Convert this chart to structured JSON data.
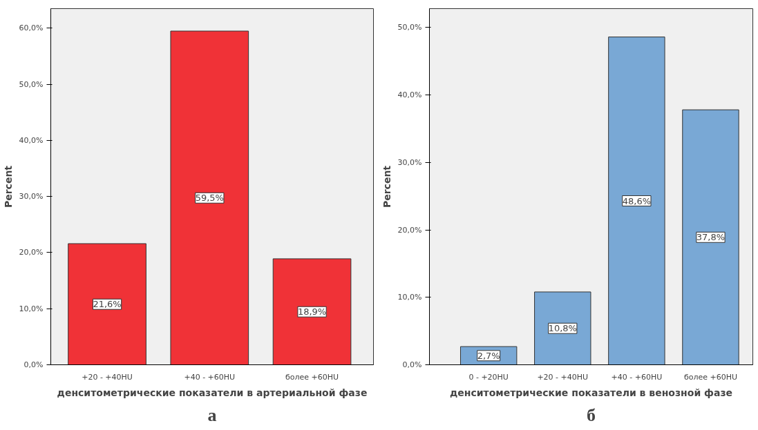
{
  "chart_data": [
    {
      "type": "bar",
      "categories": [
        "+20 - +40HU",
        "+40 - +60HU",
        "более +60HU"
      ],
      "values": [
        21.6,
        59.5,
        18.9
      ],
      "color": "#f03237",
      "value_labels": [
        "21,6%",
        "59,5%",
        "18,9%"
      ],
      "ylabel": "Percent",
      "xlabel": "денситометрические показатели в артериальной фазе",
      "annotations": [
        "а"
      ],
      "ylim": [
        0,
        63.5
      ],
      "yticks": [
        {
          "value": 0,
          "label": "0,0%"
        },
        {
          "value": 10,
          "label": "10,0%"
        },
        {
          "value": 20,
          "label": "20,0%"
        },
        {
          "value": 30,
          "label": "30,0%"
        },
        {
          "value": 40,
          "label": "40,0%"
        },
        {
          "value": 50,
          "label": "50,0%"
        },
        {
          "value": 60,
          "label": "60,0%"
        }
      ],
      "grid": false
    },
    {
      "type": "bar",
      "categories": [
        "0 - +20HU",
        "+20 - +40HU",
        "+40 - +60HU",
        "более +60HU"
      ],
      "values": [
        2.7,
        10.8,
        48.6,
        37.8
      ],
      "color": "#79a8d5",
      "value_labels": [
        "2,7%",
        "10,8%",
        "48,6%",
        "37,8%"
      ],
      "ylabel": "Percent",
      "xlabel": "денситометрические показатели в венозной фазе",
      "annotations": [
        "б"
      ],
      "ylim": [
        0,
        52.8
      ],
      "yticks": [
        {
          "value": 0,
          "label": "0,0%"
        },
        {
          "value": 10,
          "label": "10,0%"
        },
        {
          "value": 20,
          "label": "20,0%"
        },
        {
          "value": 30,
          "label": "30,0%"
        },
        {
          "value": 40,
          "label": "40,0%"
        },
        {
          "value": 50,
          "label": "50,0%"
        }
      ],
      "grid": false
    }
  ]
}
